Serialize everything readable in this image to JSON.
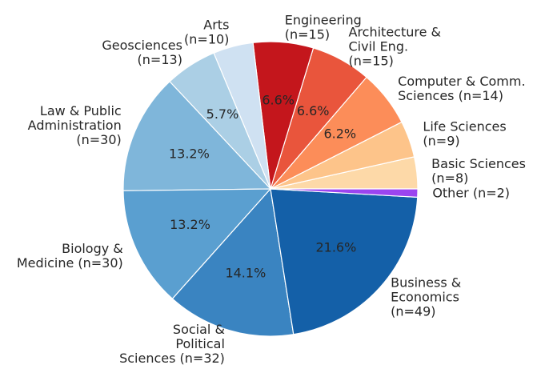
{
  "chart_data": {
    "type": "pie",
    "categories": [
      [
        "Basic Sciences",
        "(n=8)"
      ],
      [
        "Life Sciences",
        "(n=9)"
      ],
      [
        "Computer & Comm.",
        "Sciences  (n=14)"
      ],
      [
        "Architecture &",
        "Civil Eng.",
        "(n=15)"
      ],
      [
        "Engineering",
        "(n=15)"
      ],
      [
        "Arts",
        "(n=10)"
      ],
      [
        "Geosciences",
        "(n=13)"
      ],
      [
        "Law & Public",
        "Administration",
        "(n=30)"
      ],
      [
        "Biology &",
        "Medicine  (n=30)"
      ],
      [
        "Social &",
        "Political",
        "Sciences  (n=32)"
      ],
      [
        "Business &",
        "Economics",
        "(n=49)"
      ],
      [
        "Other (n=2)"
      ]
    ],
    "values": [
      3.5,
      4.0,
      6.2,
      6.6,
      6.6,
      4.4,
      5.7,
      13.2,
      13.2,
      14.1,
      21.6,
      0.9
    ],
    "value_labels": [
      null,
      null,
      "6.2%",
      "6.6%",
      "6.6%",
      null,
      "5.7%",
      "13.2%",
      "13.2%",
      "14.1%",
      "21.6%",
      null
    ],
    "colors": [
      "#fdd9a8",
      "#fdc48a",
      "#fc8d59",
      "#e9553c",
      "#c4161c",
      "#cfe1f2",
      "#abcfe5",
      "#7fb6da",
      "#5a9fd0",
      "#3a84c1",
      "#1460a8",
      "#9b45f0"
    ],
    "start_angle": 0,
    "direction": "counterclockwise"
  }
}
